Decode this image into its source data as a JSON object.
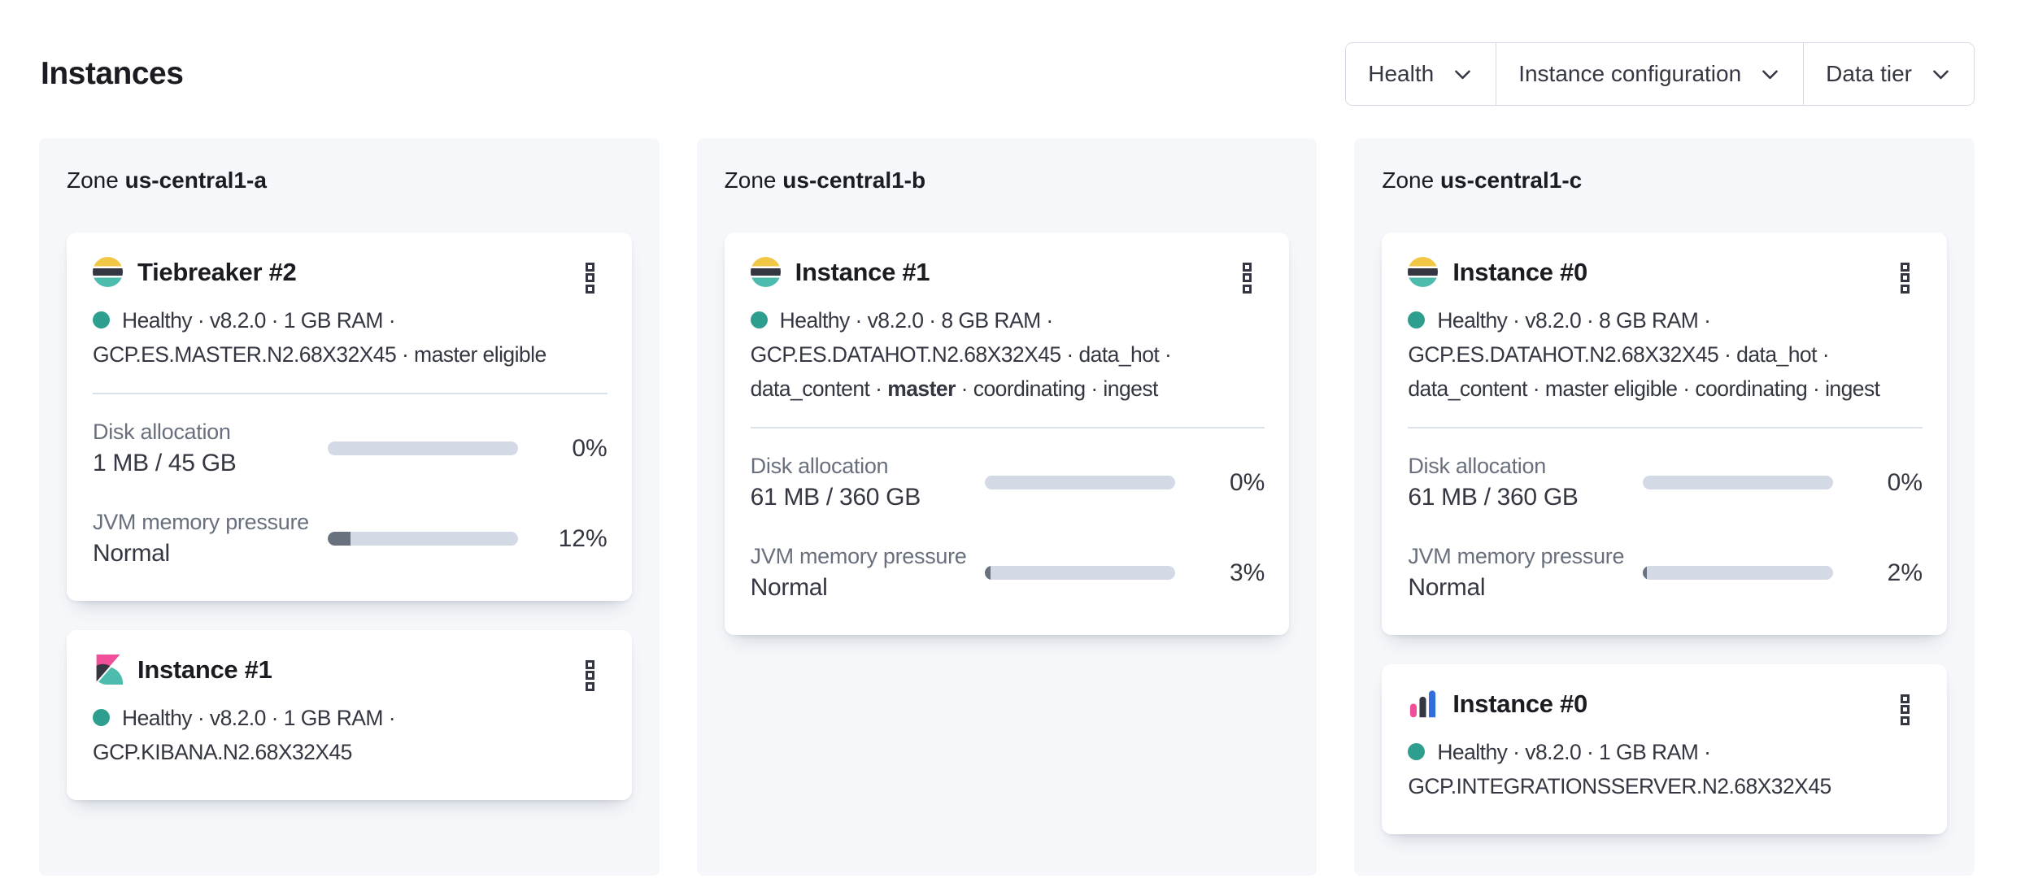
{
  "header": {
    "title": "Instances"
  },
  "filters": {
    "items": [
      {
        "label": "Health"
      },
      {
        "label": "Instance configuration"
      },
      {
        "label": "Data tier"
      }
    ]
  },
  "colors": {
    "health_dot": "#2e9e8f",
    "progress_track": "#d3dae6",
    "progress_fill": "#6a717e",
    "zone_panel_bg": "#f5f7fa",
    "accent_pink": "#f04e98",
    "accent_teal": "#4dbcae",
    "accent_yellow": "#f2c746",
    "accent_blue": "#2f6edb",
    "dark": "#343741"
  },
  "zones": [
    {
      "label_prefix": "Zone",
      "name": "us-central1-a",
      "cards": [
        {
          "logo": "elasticsearch",
          "title": "Tiebreaker #2",
          "meta_lines": [
            [
              {
                "text": "Healthy · v8.2.0 · 1 GB RAM ·"
              }
            ],
            [
              {
                "text": "GCP.ES.MASTER.N2.68X32X45 · master eligible"
              }
            ]
          ],
          "stats": [
            {
              "label": "Disk allocation",
              "value": "1 MB / 45 GB",
              "percent": "0%",
              "fill_pct": 0
            },
            {
              "label": "JVM memory pressure",
              "value": "Normal",
              "percent": "12%",
              "fill_pct": 12
            }
          ]
        },
        {
          "logo": "kibana",
          "title": "Instance #1",
          "meta_lines": [
            [
              {
                "text": "Healthy · v8.2.0 · 1 GB RAM ·"
              }
            ],
            [
              {
                "text": "GCP.KIBANA.N2.68X32X45"
              }
            ]
          ],
          "stats": []
        }
      ]
    },
    {
      "label_prefix": "Zone",
      "name": "us-central1-b",
      "cards": [
        {
          "logo": "elasticsearch",
          "title": "Instance #1",
          "meta_lines": [
            [
              {
                "text": "Healthy · v8.2.0 · 8 GB RAM ·"
              }
            ],
            [
              {
                "text": "GCP.ES.DATAHOT.N2.68X32X45 · data_hot ·"
              }
            ],
            [
              {
                "text": "data_content · "
              },
              {
                "text": "master",
                "bold": true
              },
              {
                "text": " · coordinating · ingest"
              }
            ]
          ],
          "stats": [
            {
              "label": "Disk allocation",
              "value": "61 MB / 360 GB",
              "percent": "0%",
              "fill_pct": 0
            },
            {
              "label": "JVM memory pressure",
              "value": "Normal",
              "percent": "3%",
              "fill_pct": 3
            }
          ]
        }
      ]
    },
    {
      "label_prefix": "Zone",
      "name": "us-central1-c",
      "cards": [
        {
          "logo": "elasticsearch",
          "title": "Instance #0",
          "meta_lines": [
            [
              {
                "text": "Healthy · v8.2.0 · 8 GB RAM ·"
              }
            ],
            [
              {
                "text": "GCP.ES.DATAHOT.N2.68X32X45 · data_hot ·"
              }
            ],
            [
              {
                "text": "data_content · master eligible · coordinating · ingest"
              }
            ]
          ],
          "stats": [
            {
              "label": "Disk allocation",
              "value": "61 MB / 360 GB",
              "percent": "0%",
              "fill_pct": 0
            },
            {
              "label": "JVM memory pressure",
              "value": "Normal",
              "percent": "2%",
              "fill_pct": 2
            }
          ]
        },
        {
          "logo": "integrations-server",
          "title": "Instance #0",
          "meta_lines": [
            [
              {
                "text": "Healthy · v8.2.0 · 1 GB RAM ·"
              }
            ],
            [
              {
                "text": "GCP.INTEGRATIONSSERVER.N2.68X32X45"
              }
            ]
          ],
          "stats": []
        }
      ]
    }
  ]
}
